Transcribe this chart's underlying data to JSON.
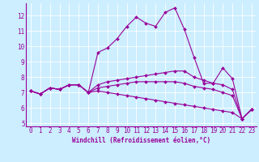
{
  "xlabel": "Windchill (Refroidissement éolien,°C)",
  "bg_color": "#cceeff",
  "line_color": "#990099",
  "xlim": [
    -0.5,
    23.5
  ],
  "ylim": [
    4.8,
    12.8
  ],
  "yticks": [
    5,
    6,
    7,
    8,
    9,
    10,
    11,
    12
  ],
  "xticks": [
    0,
    1,
    2,
    3,
    4,
    5,
    6,
    7,
    8,
    9,
    10,
    11,
    12,
    13,
    14,
    15,
    16,
    17,
    18,
    19,
    20,
    21,
    22,
    23
  ],
  "series": [
    [
      7.1,
      6.9,
      7.3,
      7.2,
      7.5,
      7.5,
      7.0,
      9.6,
      9.9,
      10.5,
      11.3,
      11.9,
      11.5,
      11.3,
      12.2,
      12.5,
      11.1,
      9.3,
      7.6,
      7.6,
      8.6,
      7.9,
      5.3,
      5.9
    ],
    [
      7.1,
      6.9,
      7.3,
      7.2,
      7.5,
      7.5,
      7.0,
      7.5,
      7.7,
      7.8,
      7.9,
      8.0,
      8.1,
      8.2,
      8.3,
      8.4,
      8.4,
      8.0,
      7.8,
      7.6,
      7.5,
      7.2,
      5.3,
      5.9
    ],
    [
      7.1,
      6.9,
      7.3,
      7.2,
      7.5,
      7.5,
      7.0,
      7.3,
      7.4,
      7.5,
      7.6,
      7.7,
      7.7,
      7.7,
      7.7,
      7.7,
      7.6,
      7.4,
      7.3,
      7.2,
      7.0,
      6.8,
      5.3,
      5.9
    ],
    [
      7.1,
      6.9,
      7.3,
      7.2,
      7.5,
      7.5,
      7.0,
      7.1,
      7.0,
      6.9,
      6.8,
      6.7,
      6.6,
      6.5,
      6.4,
      6.3,
      6.2,
      6.1,
      6.0,
      5.9,
      5.8,
      5.7,
      5.3,
      5.9
    ]
  ],
  "marker_size": 2.0,
  "line_width": 0.8,
  "tick_fontsize": 5.5,
  "xlabel_fontsize": 5.5
}
